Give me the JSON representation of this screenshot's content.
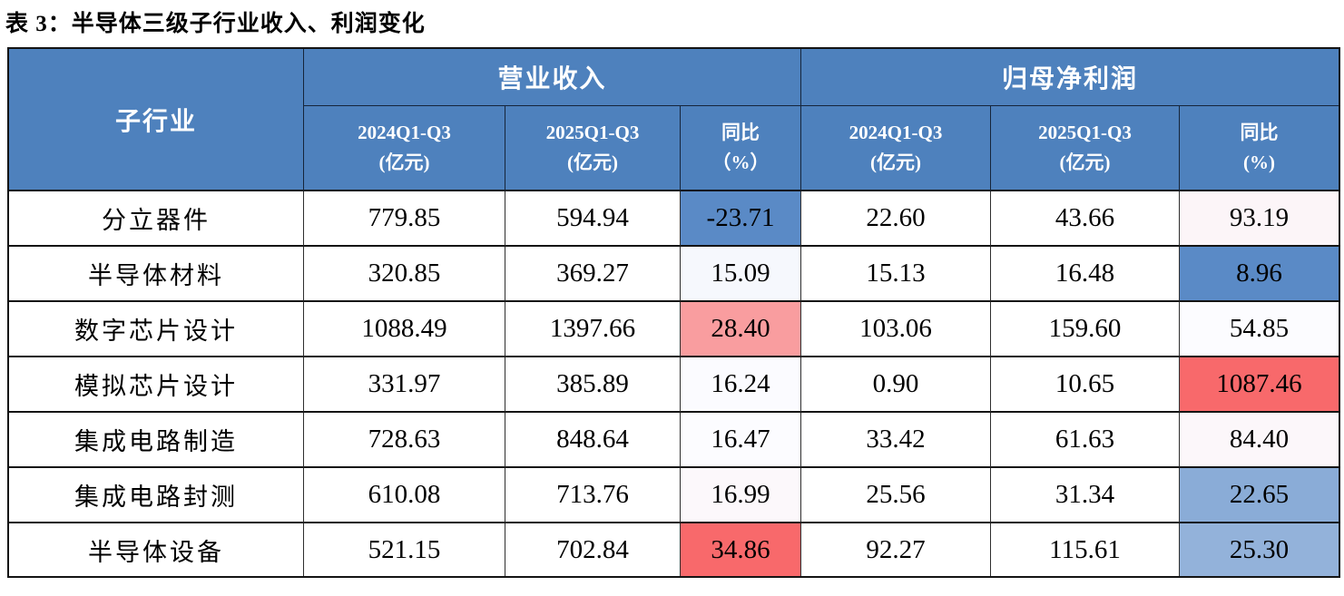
{
  "page": {
    "title": "表 3：半导体三级子行业收入、利润变化"
  },
  "colors": {
    "header_bg": "#4E81BD",
    "header_text": "#FFFFFF",
    "border_dark": "#141414",
    "yoy_low_blue": "#5A8AC6",
    "yoy_mid_white": "#FCFCFF",
    "yoy_high_red": "#F8696B"
  },
  "table": {
    "corner": "子行业",
    "groups": [
      {
        "label": "营业收入"
      },
      {
        "label": "归母净利润"
      }
    ],
    "subheaders": [
      {
        "line1": "2024Q1-Q3",
        "line2": "(亿元)"
      },
      {
        "line1": "2025Q1-Q3",
        "line2": "(亿元)"
      },
      {
        "line1": "同比",
        "line2": "（%）"
      },
      {
        "line1": "2024Q1-Q3",
        "line2": "(亿元)"
      },
      {
        "line1": "2025Q1-Q3",
        "line2": "(亿元)"
      },
      {
        "line1": "同比",
        "line2": "(%)"
      }
    ],
    "rows": [
      {
        "name": "分立器件",
        "rev2024": "779.85",
        "rev2025": "594.94",
        "rev_yoy": "-23.71",
        "rev_yoy_bg": "#5A8AC6",
        "np2024": "22.60",
        "np2025": "43.66",
        "np_yoy": "93.19",
        "np_yoy_bg": "#FCF5F8"
      },
      {
        "name": "半导体材料",
        "rev2024": "320.85",
        "rev2025": "369.27",
        "rev_yoy": "15.09",
        "rev_yoy_bg": "#F6F8FD",
        "np2024": "15.13",
        "np2025": "16.48",
        "np_yoy": "8.96",
        "np_yoy_bg": "#5A8AC6"
      },
      {
        "name": "数字芯片设计",
        "rev2024": "1088.49",
        "rev2025": "1397.66",
        "rev_yoy": "28.40",
        "rev_yoy_bg": "#F99D9F",
        "np2024": "103.06",
        "np2025": "159.60",
        "np_yoy": "54.85",
        "np_yoy_bg": "#FCFCFF"
      },
      {
        "name": "模拟芯片设计",
        "rev2024": "331.97",
        "rev2025": "385.89",
        "rev_yoy": "16.24",
        "rev_yoy_bg": "#FBFBFF",
        "np2024": "0.90",
        "np2025": "10.65",
        "np_yoy": "1087.46",
        "np_yoy_bg": "#F8696B"
      },
      {
        "name": "集成电路制造",
        "rev2024": "728.63",
        "rev2025": "848.64",
        "rev_yoy": "16.47",
        "rev_yoy_bg": "#FCFCFF",
        "np2024": "33.42",
        "np2025": "61.63",
        "np_yoy": "84.40",
        "np_yoy_bg": "#FCF7FA"
      },
      {
        "name": "集成电路封测",
        "rev2024": "610.08",
        "rev2025": "713.76",
        "rev_yoy": "16.99",
        "rev_yoy_bg": "#FCF8FB",
        "np2024": "25.56",
        "np2025": "31.34",
        "np_yoy": "22.65",
        "np_yoy_bg": "#8AACD7"
      },
      {
        "name": "半导体设备",
        "rev2024": "521.15",
        "rev2025": "702.84",
        "rev_yoy": "34.86",
        "rev_yoy_bg": "#F8696B",
        "np2024": "92.27",
        "np2025": "115.61",
        "np_yoy": "25.30",
        "np_yoy_bg": "#93B2DA"
      }
    ]
  }
}
